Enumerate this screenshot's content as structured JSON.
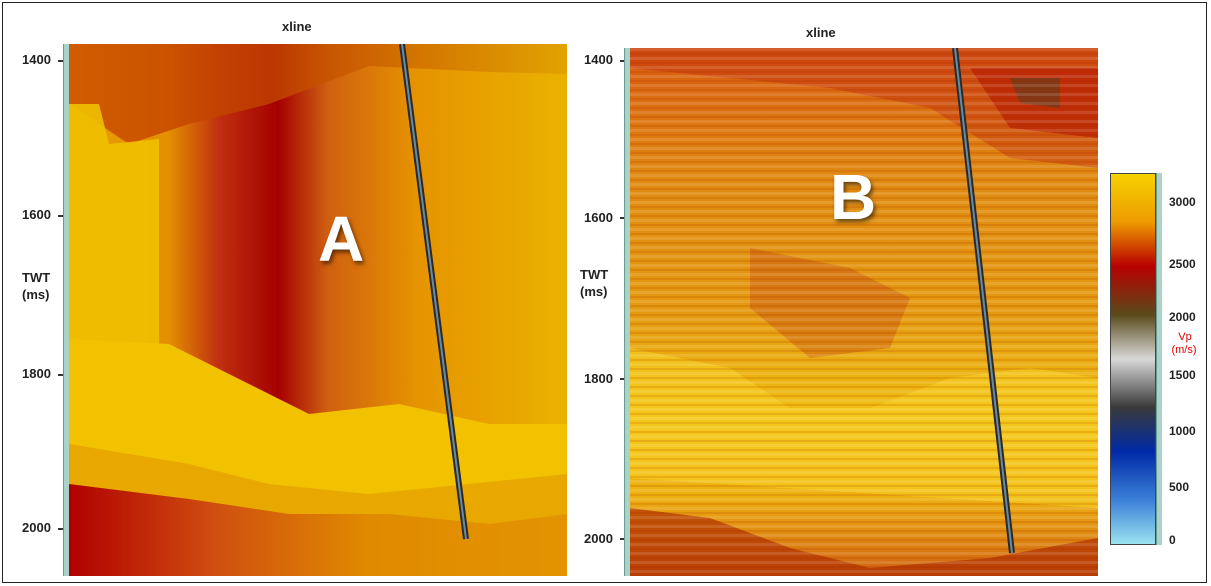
{
  "panel_a": {
    "title": "xline",
    "letter": "A",
    "y_ticks": [
      "1400",
      "1600",
      "1800",
      "2000"
    ],
    "y_label_line1": "TWT",
    "y_label_line2": "(ms)"
  },
  "panel_b": {
    "title": "xline",
    "letter": "B",
    "y_ticks": [
      "1400",
      "1600",
      "1800",
      "2000"
    ],
    "y_label_line1": "TWT",
    "y_label_line2": "(ms)"
  },
  "colorbar": {
    "ticks": [
      "3000",
      "2500",
      "2000",
      "1500",
      "1000",
      "500",
      "0"
    ],
    "unit_line1": "Vp",
    "unit_line2": "(m/s)",
    "colors": [
      "#f6d200",
      "#ee9a00",
      "#b80000",
      "#5a4a1a",
      "#d8d8d8",
      "#3a3a3a",
      "#002aa6",
      "#3b7fd8",
      "#9be3f0"
    ]
  }
}
